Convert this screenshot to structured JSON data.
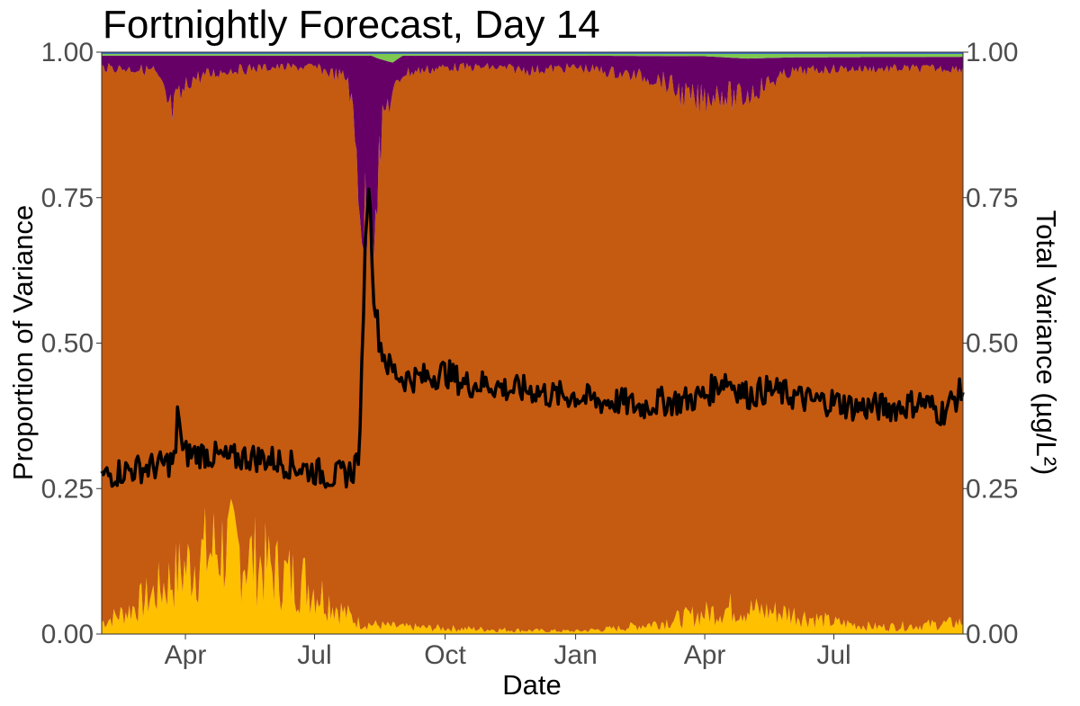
{
  "chart_data": {
    "type": "area",
    "title": "Fortnightly Forecast, Day 14",
    "xlabel": "Date",
    "ylabel": "Proportion of Variance",
    "y2label": "Total Variance (µg/L²)",
    "x_start": "2019-02-01",
    "x_end": "2020-09-30",
    "x_tick_labels": [
      "Apr",
      "Jul",
      "Oct",
      "Jan",
      "Apr",
      "Jul"
    ],
    "x_tick_dates": [
      "2019-04-01",
      "2019-07-01",
      "2019-10-01",
      "2020-01-01",
      "2020-04-01",
      "2020-07-01"
    ],
    "ylim": [
      0,
      1
    ],
    "y_ticks": [
      0,
      0.25,
      0.5,
      0.75,
      1
    ],
    "y_tick_labels": [
      "0.00",
      "0.25",
      "0.50",
      "0.75",
      "1.00"
    ],
    "y2lim": [
      0,
      1
    ],
    "y2_tick_labels": [
      "0.00",
      "0.25",
      "0.50",
      "0.75",
      "1.00"
    ],
    "grid": false,
    "legend": "none",
    "colors": {
      "yellow": "#FFC000",
      "orange": "#C55A11",
      "purple": "#660066",
      "green": "#7EC850",
      "blue": "#3A6BC9",
      "line": "#000000"
    },
    "stack_order_bottom_to_top": [
      "yellow",
      "orange",
      "purple",
      "green",
      "blue"
    ],
    "series": [
      {
        "component": "yellow",
        "x": [
          "2019-02-01",
          "2019-02-20",
          "2019-03-10",
          "2019-03-25",
          "2019-04-10",
          "2019-04-25",
          "2019-05-10",
          "2019-05-25",
          "2019-06-10",
          "2019-06-25",
          "2019-07-10",
          "2019-07-20",
          "2019-08-01",
          "2019-08-15",
          "2019-09-01",
          "2019-10-01",
          "2019-11-01",
          "2019-12-01",
          "2020-01-01",
          "2020-02-01",
          "2020-03-01",
          "2020-04-01",
          "2020-04-20",
          "2020-05-10",
          "2020-06-01",
          "2020-07-01",
          "2020-08-01",
          "2020-09-01",
          "2020-09-30"
        ],
        "values": [
          0.02,
          0.04,
          0.07,
          0.1,
          0.13,
          0.15,
          0.14,
          0.12,
          0.1,
          0.09,
          0.06,
          0.04,
          0.02,
          0.015,
          0.012,
          0.01,
          0.008,
          0.006,
          0.005,
          0.01,
          0.02,
          0.035,
          0.045,
          0.04,
          0.035,
          0.02,
          0.012,
          0.015,
          0.02
        ]
      },
      {
        "component": "purple",
        "x": [
          "2019-02-01",
          "2019-03-10",
          "2019-03-22",
          "2019-04-05",
          "2019-05-01",
          "2019-06-01",
          "2019-07-01",
          "2019-07-25",
          "2019-08-05",
          "2019-08-12",
          "2019-08-20",
          "2019-09-01",
          "2019-10-01",
          "2019-11-01",
          "2019-12-01",
          "2020-01-01",
          "2020-02-01",
          "2020-03-01",
          "2020-03-25",
          "2020-04-10",
          "2020-04-25",
          "2020-05-10",
          "2020-06-01",
          "2020-07-01",
          "2020-08-01",
          "2020-09-01",
          "2020-09-30"
        ],
        "values": [
          0.02,
          0.025,
          0.1,
          0.04,
          0.025,
          0.02,
          0.02,
          0.04,
          0.3,
          0.25,
          0.08,
          0.03,
          0.02,
          0.02,
          0.025,
          0.02,
          0.03,
          0.04,
          0.08,
          0.06,
          0.07,
          0.05,
          0.025,
          0.02,
          0.02,
          0.02,
          0.02
        ]
      },
      {
        "component": "green",
        "x": [
          "2019-02-01",
          "2019-08-10",
          "2019-08-15",
          "2019-08-25",
          "2019-09-01",
          "2020-01-01",
          "2020-04-01",
          "2020-05-01",
          "2020-06-01",
          "2020-09-30"
        ],
        "values": [
          0.003,
          0.003,
          0.008,
          0.015,
          0.003,
          0.003,
          0.004,
          0.008,
          0.006,
          0.005
        ]
      },
      {
        "component": "blue",
        "x": [
          "2019-02-01",
          "2020-09-30"
        ],
        "values": [
          0.003,
          0.003
        ]
      },
      {
        "component": "orange",
        "values": "remainder"
      },
      {
        "component": "line",
        "axis": "right",
        "x": [
          "2019-02-01",
          "2019-02-15",
          "2019-03-01",
          "2019-03-15",
          "2019-03-25",
          "2019-03-27",
          "2019-03-30",
          "2019-04-15",
          "2019-05-01",
          "2019-05-15",
          "2019-06-01",
          "2019-06-15",
          "2019-07-01",
          "2019-07-15",
          "2019-07-28",
          "2019-08-02",
          "2019-08-05",
          "2019-08-08",
          "2019-08-12",
          "2019-08-16",
          "2019-08-22",
          "2019-09-01",
          "2019-09-15",
          "2019-10-01",
          "2019-10-15",
          "2019-11-01",
          "2019-11-15",
          "2019-12-01",
          "2019-12-15",
          "2020-01-01",
          "2020-01-15",
          "2020-02-01",
          "2020-02-15",
          "2020-03-01",
          "2020-03-15",
          "2020-04-01",
          "2020-04-15",
          "2020-05-01",
          "2020-05-15",
          "2020-06-01",
          "2020-06-15",
          "2020-07-01",
          "2020-07-15",
          "2020-08-01",
          "2020-08-15",
          "2020-09-01",
          "2020-09-15",
          "2020-09-30"
        ],
        "values": [
          0.27,
          0.28,
          0.285,
          0.29,
          0.3,
          0.4,
          0.31,
          0.31,
          0.3,
          0.305,
          0.3,
          0.29,
          0.28,
          0.27,
          0.28,
          0.32,
          0.62,
          0.79,
          0.58,
          0.5,
          0.46,
          0.44,
          0.44,
          0.45,
          0.43,
          0.43,
          0.42,
          0.42,
          0.41,
          0.41,
          0.4,
          0.4,
          0.39,
          0.4,
          0.4,
          0.41,
          0.44,
          0.41,
          0.42,
          0.41,
          0.4,
          0.4,
          0.39,
          0.39,
          0.39,
          0.4,
          0.38,
          0.42
        ]
      }
    ]
  }
}
